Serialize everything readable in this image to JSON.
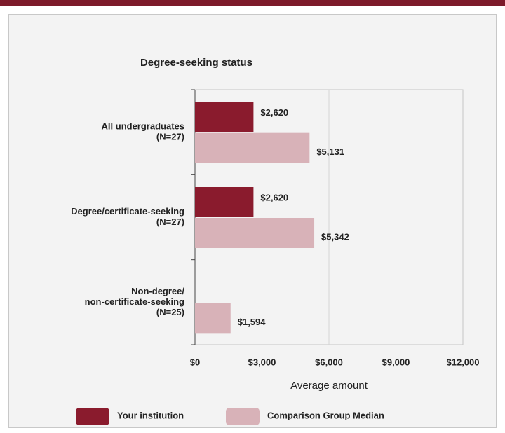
{
  "chart_data": {
    "type": "bar",
    "orientation": "horizontal",
    "title": "Degree-seeking status",
    "x_label": "Average amount",
    "categories": [
      [
        "All undergraduates",
        "(N=27)"
      ],
      [
        "Degree/certificate-seeking",
        "(N=27)"
      ],
      [
        "Non-degree/",
        "non-certificate-seeking",
        "(N=25)"
      ]
    ],
    "series": [
      {
        "name": "Your institution",
        "color": "#8a1b2d",
        "values": [
          2620,
          2620,
          null
        ],
        "value_labels": [
          "$2,620",
          "$2,620",
          null
        ]
      },
      {
        "name": "Comparison Group Median",
        "color": "#d8b2b8",
        "values": [
          5131,
          5342,
          1594
        ],
        "value_labels": [
          "$5,131",
          "$5,342",
          "$1,594"
        ]
      }
    ],
    "xlim": [
      0,
      12000
    ],
    "xticks": [
      {
        "value": 0,
        "label": "$0"
      },
      {
        "value": 3000,
        "label": "$3,000"
      },
      {
        "value": 6000,
        "label": "$6,000"
      },
      {
        "value": 9000,
        "label": "$9,000"
      },
      {
        "value": 12000,
        "label": "$12,000"
      }
    ],
    "grid": true
  }
}
